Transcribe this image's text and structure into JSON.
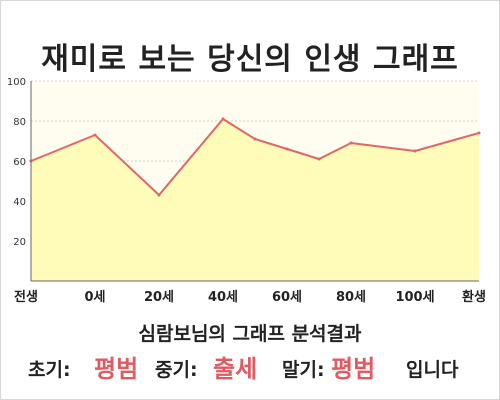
{
  "page": {
    "title": "재미로 보는 당신의 인생 그래프",
    "result_heading": "심람보님의 그래프 분석결과",
    "early_label": "초기:",
    "early_value": "평범",
    "middle_label": "중기:",
    "middle_value": "출세",
    "late_label": "말기:",
    "late_value": "평범",
    "ending": "입니다"
  },
  "colors": {
    "line": "#e06668",
    "fill": "#fffbb8",
    "plot_bg": "#fffdf0",
    "accent": "#e05a62"
  },
  "chart_data": {
    "type": "area",
    "title": "재미로 보는 당신의 인생 그래프",
    "xlabel": "",
    "ylabel": "",
    "categories": [
      "전생",
      "0세",
      "20세",
      "40세",
      "60세",
      "80세",
      "100세",
      "환생"
    ],
    "x": [
      -20,
      0,
      20,
      40,
      50,
      60,
      70,
      80,
      100,
      120
    ],
    "values": [
      60,
      73,
      43,
      81,
      71,
      66,
      61,
      69,
      65,
      74
    ],
    "ylim": [
      0,
      100
    ],
    "yticks": [
      20,
      40,
      60,
      80,
      100
    ],
    "grid": true
  }
}
